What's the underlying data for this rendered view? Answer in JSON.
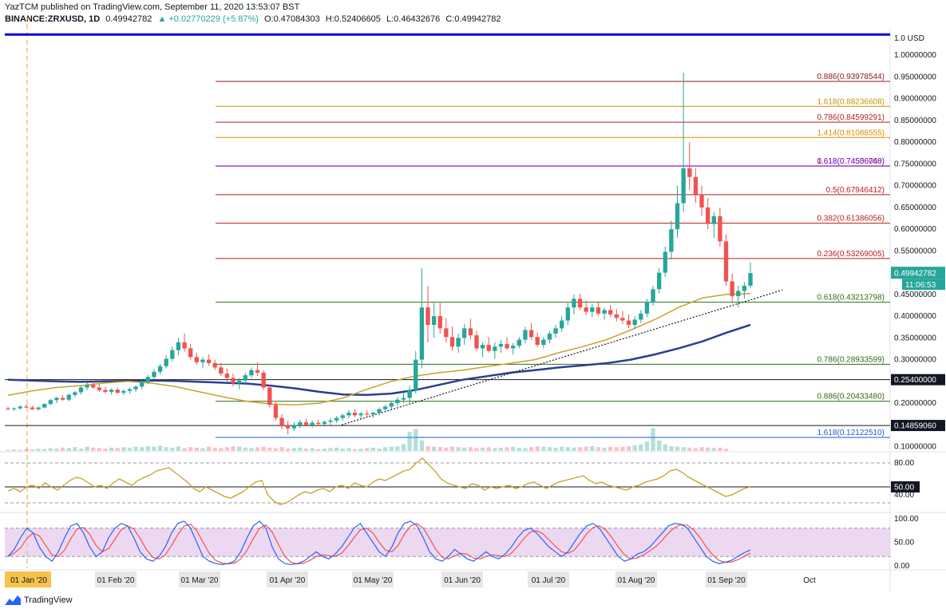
{
  "header": {
    "line1": "YazTCM published on TradingView.com, September 11, 2020 13:53:07 BST",
    "symbol": "BINANCE:ZRXUSD, 1D",
    "last": "0.49942782",
    "change": "▲ +0.02770229 (+5.87%)",
    "open": "O:0.47084303",
    "high": "H:0.52406605",
    "low": "L:0.46432676",
    "close": "C:0.49942782"
  },
  "footer": {
    "brand": "TradingView"
  },
  "colors": {
    "up": "#26a69a",
    "down": "#ef5350",
    "ma200": "#2a3f8f",
    "ma100": "#c9a227",
    "blue_line": "#1000d0",
    "rsi": "#c9a227",
    "stoch_k": "#2962ff",
    "stoch_d": "#ef5350"
  },
  "chart_data": [
    {
      "type": "candlestick",
      "title": "",
      "currency_label": "1.0 USD",
      "y_ticks": [
        "1.00000000",
        "0.95000000",
        "0.90000000",
        "0.85000000",
        "0.80000000",
        "0.75000000",
        "0.70000000",
        "0.65000000",
        "0.60000000",
        "0.55000000",
        "0.50000000",
        "0.45000000",
        "0.40000000",
        "0.35000000",
        "0.30000000",
        "0.25000000",
        "0.20000000",
        "0.15000000",
        "0.10000000"
      ],
      "ylim": [
        0.09,
        1.05
      ],
      "x_ticks": [
        "01 Jan '20",
        "01 Feb '20",
        "01 Mar '20",
        "01 Apr '20",
        "01 May '20",
        "01 Jun '20",
        "01 Jul '20",
        "01 Aug '20",
        "01 Sep '20",
        "Oct"
      ],
      "price_label": "0.49942782",
      "countdown": "11:06:53",
      "horizontal_labels": [
        {
          "label": "0.25400000",
          "value": 0.254
        },
        {
          "label": "0.14859060",
          "value": 0.1486
        }
      ],
      "fib_levels": [
        {
          "label": "0.886(0.93978544)",
          "value": 0.9398,
          "color": "#8b1a1a"
        },
        {
          "label": "1.618(0.88236608)",
          "value": 0.8824,
          "color": "#c79200"
        },
        {
          "label": "0.786(0.84599291)",
          "value": 0.846,
          "color": "#b71c1c"
        },
        {
          "label": "1.414(0.81088555)",
          "value": 0.8109,
          "color": "#e08a00"
        },
        {
          "label": "0.618(0.74506768)",
          "value": 0.7451,
          "color": "#b71c1c"
        },
        {
          "label": "1.618(0.74556040)",
          "value": 0.7456,
          "color": "#7b1fe0"
        },
        {
          "label": "0.5(0.67946412)",
          "value": 0.6795,
          "color": "#b71c1c"
        },
        {
          "label": "0.382(0.61386056)",
          "value": 0.6139,
          "color": "#b71c1c"
        },
        {
          "label": "0.236(0.53269005)",
          "value": 0.5327,
          "color": "#b71c1c"
        },
        {
          "label": "0.618(0.43213798)",
          "value": 0.4321,
          "color": "#2e6b14"
        },
        {
          "label": "0.786(0.28933599)",
          "value": 0.2893,
          "color": "#2e6b14"
        },
        {
          "label": "0.886(0.20433480)",
          "value": 0.2043,
          "color": "#2e6b14"
        },
        {
          "label": "1.618(0.12122510)",
          "value": 0.1212,
          "color": "#1e5bd6"
        }
      ],
      "blue_top_line": 1.0,
      "ohlc_series": [
        [
          0.188,
          0.192,
          0.183,
          0.186
        ],
        [
          0.186,
          0.19,
          0.182,
          0.188
        ],
        [
          0.188,
          0.195,
          0.185,
          0.192
        ],
        [
          0.192,
          0.198,
          0.189,
          0.19
        ],
        [
          0.19,
          0.194,
          0.184,
          0.186
        ],
        [
          0.186,
          0.192,
          0.183,
          0.19
        ],
        [
          0.19,
          0.2,
          0.188,
          0.198
        ],
        [
          0.198,
          0.21,
          0.195,
          0.207
        ],
        [
          0.207,
          0.215,
          0.2,
          0.212
        ],
        [
          0.212,
          0.218,
          0.205,
          0.208
        ],
        [
          0.208,
          0.222,
          0.204,
          0.219
        ],
        [
          0.219,
          0.228,
          0.214,
          0.225
        ],
        [
          0.225,
          0.24,
          0.22,
          0.236
        ],
        [
          0.236,
          0.248,
          0.23,
          0.242
        ],
        [
          0.242,
          0.25,
          0.232,
          0.236
        ],
        [
          0.236,
          0.244,
          0.225,
          0.23
        ],
        [
          0.23,
          0.238,
          0.222,
          0.226
        ],
        [
          0.226,
          0.234,
          0.22,
          0.231
        ],
        [
          0.231,
          0.236,
          0.222,
          0.224
        ],
        [
          0.224,
          0.232,
          0.218,
          0.228
        ],
        [
          0.228,
          0.236,
          0.222,
          0.232
        ],
        [
          0.232,
          0.24,
          0.226,
          0.238
        ],
        [
          0.238,
          0.252,
          0.232,
          0.248
        ],
        [
          0.248,
          0.265,
          0.244,
          0.26
        ],
        [
          0.26,
          0.278,
          0.255,
          0.272
        ],
        [
          0.272,
          0.29,
          0.266,
          0.285
        ],
        [
          0.285,
          0.31,
          0.28,
          0.302
        ],
        [
          0.302,
          0.33,
          0.296,
          0.322
        ],
        [
          0.322,
          0.35,
          0.31,
          0.34
        ],
        [
          0.34,
          0.36,
          0.318,
          0.326
        ],
        [
          0.326,
          0.336,
          0.3,
          0.306
        ],
        [
          0.306,
          0.316,
          0.288,
          0.294
        ],
        [
          0.294,
          0.306,
          0.28,
          0.3
        ],
        [
          0.3,
          0.312,
          0.286,
          0.292
        ],
        [
          0.292,
          0.3,
          0.276,
          0.282
        ],
        [
          0.282,
          0.292,
          0.262,
          0.268
        ],
        [
          0.268,
          0.28,
          0.25,
          0.258
        ],
        [
          0.258,
          0.268,
          0.238,
          0.246
        ],
        [
          0.246,
          0.258,
          0.232,
          0.252
        ],
        [
          0.252,
          0.27,
          0.246,
          0.264
        ],
        [
          0.264,
          0.282,
          0.258,
          0.276
        ],
        [
          0.276,
          0.294,
          0.262,
          0.27
        ],
        [
          0.27,
          0.276,
          0.23,
          0.236
        ],
        [
          0.236,
          0.242,
          0.19,
          0.196
        ],
        [
          0.196,
          0.202,
          0.16,
          0.166
        ],
        [
          0.166,
          0.175,
          0.14,
          0.15
        ],
        [
          0.15,
          0.16,
          0.128,
          0.142
        ],
        [
          0.142,
          0.156,
          0.136,
          0.15
        ],
        [
          0.15,
          0.162,
          0.142,
          0.156
        ],
        [
          0.156,
          0.164,
          0.146,
          0.15
        ],
        [
          0.15,
          0.16,
          0.144,
          0.155
        ],
        [
          0.155,
          0.162,
          0.147,
          0.152
        ],
        [
          0.152,
          0.16,
          0.146,
          0.157
        ],
        [
          0.157,
          0.166,
          0.15,
          0.16
        ],
        [
          0.16,
          0.17,
          0.154,
          0.166
        ],
        [
          0.166,
          0.176,
          0.16,
          0.172
        ],
        [
          0.172,
          0.184,
          0.166,
          0.178
        ],
        [
          0.178,
          0.186,
          0.168,
          0.172
        ],
        [
          0.172,
          0.18,
          0.164,
          0.176
        ],
        [
          0.176,
          0.184,
          0.168,
          0.174
        ],
        [
          0.174,
          0.18,
          0.166,
          0.178
        ],
        [
          0.178,
          0.19,
          0.172,
          0.186
        ],
        [
          0.186,
          0.196,
          0.178,
          0.192
        ],
        [
          0.192,
          0.204,
          0.186,
          0.2
        ],
        [
          0.2,
          0.214,
          0.194,
          0.208
        ],
        [
          0.208,
          0.224,
          0.2,
          0.212
        ],
        [
          0.212,
          0.24,
          0.2,
          0.23
        ],
        [
          0.23,
          0.32,
          0.222,
          0.3
        ],
        [
          0.3,
          0.51,
          0.28,
          0.42
        ],
        [
          0.42,
          0.47,
          0.34,
          0.38
        ],
        [
          0.38,
          0.43,
          0.35,
          0.4
        ],
        [
          0.4,
          0.43,
          0.36,
          0.372
        ],
        [
          0.372,
          0.396,
          0.34,
          0.352
        ],
        [
          0.352,
          0.376,
          0.32,
          0.33
        ],
        [
          0.33,
          0.36,
          0.316,
          0.35
        ],
        [
          0.35,
          0.382,
          0.334,
          0.372
        ],
        [
          0.372,
          0.394,
          0.346,
          0.356
        ],
        [
          0.356,
          0.366,
          0.32,
          0.326
        ],
        [
          0.326,
          0.34,
          0.306,
          0.334
        ],
        [
          0.334,
          0.352,
          0.316,
          0.32
        ],
        [
          0.32,
          0.34,
          0.302,
          0.33
        ],
        [
          0.33,
          0.346,
          0.316,
          0.336
        ],
        [
          0.336,
          0.352,
          0.322,
          0.326
        ],
        [
          0.326,
          0.338,
          0.312,
          0.332
        ],
        [
          0.332,
          0.352,
          0.326,
          0.346
        ],
        [
          0.346,
          0.376,
          0.338,
          0.368
        ],
        [
          0.368,
          0.384,
          0.346,
          0.352
        ],
        [
          0.352,
          0.362,
          0.328,
          0.334
        ],
        [
          0.334,
          0.352,
          0.326,
          0.346
        ],
        [
          0.346,
          0.366,
          0.338,
          0.36
        ],
        [
          0.36,
          0.38,
          0.35,
          0.372
        ],
        [
          0.372,
          0.4,
          0.364,
          0.39
        ],
        [
          0.39,
          0.43,
          0.38,
          0.42
        ],
        [
          0.42,
          0.45,
          0.404,
          0.44
        ],
        [
          0.44,
          0.452,
          0.414,
          0.42
        ],
        [
          0.42,
          0.436,
          0.402,
          0.41
        ],
        [
          0.41,
          0.428,
          0.398,
          0.42
        ],
        [
          0.42,
          0.432,
          0.4,
          0.406
        ],
        [
          0.406,
          0.42,
          0.392,
          0.414
        ],
        [
          0.414,
          0.426,
          0.398,
          0.404
        ],
        [
          0.404,
          0.416,
          0.388,
          0.396
        ],
        [
          0.396,
          0.412,
          0.382,
          0.39
        ],
        [
          0.39,
          0.404,
          0.372,
          0.38
        ],
        [
          0.38,
          0.4,
          0.37,
          0.392
        ],
        [
          0.392,
          0.414,
          0.384,
          0.406
        ],
        [
          0.406,
          0.44,
          0.398,
          0.432
        ],
        [
          0.432,
          0.47,
          0.424,
          0.462
        ],
        [
          0.462,
          0.51,
          0.452,
          0.5
        ],
        [
          0.5,
          0.56,
          0.49,
          0.548
        ],
        [
          0.548,
          0.62,
          0.53,
          0.6
        ],
        [
          0.6,
          0.7,
          0.58,
          0.66
        ],
        [
          0.66,
          0.96,
          0.64,
          0.74
        ],
        [
          0.74,
          0.8,
          0.69,
          0.72
        ],
        [
          0.72,
          0.74,
          0.66,
          0.68
        ],
        [
          0.68,
          0.7,
          0.63,
          0.65
        ],
        [
          0.65,
          0.672,
          0.6,
          0.612
        ],
        [
          0.612,
          0.64,
          0.58,
          0.63
        ],
        [
          0.63,
          0.65,
          0.56,
          0.572
        ],
        [
          0.572,
          0.588,
          0.47,
          0.48
        ],
        [
          0.48,
          0.498,
          0.43,
          0.446
        ],
        [
          0.446,
          0.47,
          0.42,
          0.458
        ],
        [
          0.458,
          0.478,
          0.44,
          0.47
        ],
        [
          0.47,
          0.524,
          0.464,
          0.499
        ]
      ],
      "ma200": [
        0.254,
        0.252,
        0.25,
        0.249,
        0.25,
        0.251,
        0.252,
        0.251,
        0.249,
        0.247,
        0.245,
        0.24,
        0.234,
        0.226,
        0.22,
        0.219,
        0.222,
        0.23,
        0.242,
        0.254,
        0.262,
        0.27,
        0.276,
        0.282,
        0.287,
        0.292,
        0.3,
        0.312,
        0.326,
        0.342,
        0.362,
        0.38
      ],
      "ma100": [
        0.218,
        0.228,
        0.236,
        0.24,
        0.246,
        0.25,
        0.246,
        0.238,
        0.226,
        0.214,
        0.204,
        0.198,
        0.196,
        0.2,
        0.212,
        0.232,
        0.25,
        0.262,
        0.27,
        0.276,
        0.284,
        0.292,
        0.3,
        0.316,
        0.33,
        0.346,
        0.368,
        0.392,
        0.42,
        0.442,
        0.45,
        0.452
      ],
      "trendline_from": 0.15,
      "trendline_to": 0.46,
      "volume": [
        2,
        3,
        2,
        4,
        3,
        5,
        4,
        6,
        5,
        7,
        6,
        8,
        5,
        9,
        7,
        6,
        5,
        7,
        6,
        8,
        7,
        9,
        8,
        10,
        9,
        11,
        8,
        7,
        9,
        6,
        8,
        7,
        6,
        9,
        7,
        6,
        8,
        10,
        9,
        7,
        6,
        8,
        9,
        7,
        6,
        8,
        5,
        6,
        7,
        5,
        6,
        4,
        5,
        6,
        7,
        5,
        6,
        4,
        5,
        6,
        7,
        5,
        8,
        9,
        10,
        14,
        40,
        46,
        22,
        10,
        9,
        8,
        7,
        9,
        8,
        7,
        8,
        6,
        7,
        8,
        6,
        7,
        8,
        9,
        7,
        6,
        8,
        10,
        9,
        8,
        7,
        9,
        8,
        7,
        8,
        9,
        10,
        8,
        7,
        9,
        8,
        9,
        10,
        12,
        14,
        20,
        48,
        22,
        14,
        10,
        9,
        8,
        7,
        6,
        8,
        7,
        6,
        7,
        5
      ],
      "volume_scale": 50
    },
    {
      "type": "line",
      "title": "",
      "y_ticks": [
        "80.00",
        "40.00"
      ],
      "ylim": [
        20,
        90
      ],
      "current_label": "50.00",
      "reference_value": 50,
      "values": [
        45,
        48,
        44,
        50,
        52,
        48,
        55,
        50,
        46,
        52,
        58,
        62,
        60,
        55,
        50,
        52,
        48,
        55,
        60,
        56,
        52,
        58,
        62,
        65,
        70,
        72,
        74,
        68,
        62,
        56,
        48,
        44,
        50,
        46,
        42,
        38,
        36,
        40,
        44,
        50,
        56,
        58,
        40,
        32,
        28,
        30,
        35,
        40,
        44,
        42,
        46,
        48,
        44,
        50,
        52,
        48,
        55,
        52,
        50,
        56,
        60,
        58,
        62,
        66,
        70,
        72,
        80,
        86,
        78,
        70,
        60,
        55,
        52,
        50,
        48,
        54,
        52,
        46,
        50,
        48,
        50,
        52,
        48,
        50,
        54,
        56,
        52,
        48,
        52,
        56,
        58,
        60,
        62,
        64,
        58,
        54,
        56,
        52,
        50,
        48,
        46,
        50,
        52,
        56,
        58,
        60,
        64,
        70,
        72,
        68,
        62,
        58,
        54,
        50,
        46,
        42,
        38,
        40,
        44,
        48,
        50
      ]
    },
    {
      "type": "line",
      "title": "",
      "y_ticks": [
        "100.00",
        "50.00",
        "0.00"
      ],
      "ylim": [
        -5,
        110
      ],
      "band": [
        20,
        80
      ],
      "k_values": [
        20,
        35,
        60,
        80,
        70,
        40,
        20,
        10,
        30,
        60,
        85,
        90,
        70,
        40,
        20,
        30,
        60,
        80,
        90,
        85,
        60,
        30,
        15,
        10,
        20,
        40,
        70,
        90,
        95,
        80,
        50,
        20,
        10,
        5,
        3,
        5,
        10,
        30,
        60,
        85,
        95,
        80,
        40,
        15,
        5,
        3,
        5,
        10,
        20,
        30,
        20,
        15,
        25,
        40,
        60,
        80,
        90,
        70,
        50,
        30,
        20,
        40,
        70,
        90,
        95,
        85,
        60,
        30,
        15,
        10,
        20,
        35,
        25,
        15,
        10,
        20,
        30,
        20,
        15,
        25,
        40,
        60,
        75,
        80,
        70,
        55,
        40,
        30,
        20,
        30,
        50,
        70,
        85,
        90,
        80,
        60,
        40,
        20,
        10,
        15,
        25,
        30,
        40,
        55,
        70,
        85,
        90,
        88,
        80,
        60,
        40,
        20,
        10,
        5,
        8,
        12,
        20,
        28,
        34
      ]
    }
  ]
}
